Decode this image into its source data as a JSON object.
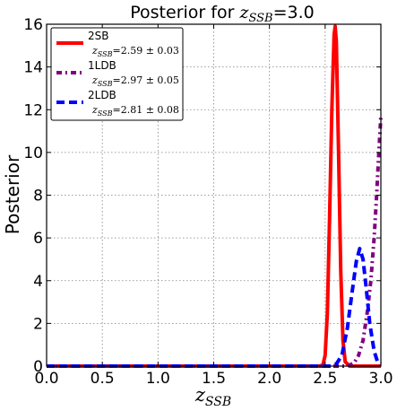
{
  "chart_data": {
    "type": "line",
    "title_prefix": "Posterior for ",
    "title_var": "z",
    "title_sub": "SSB",
    "title_suffix": "=3.0",
    "ylabel": "Posterior",
    "xlabel_var": "z",
    "xlabel_sub": "SSB",
    "xlim": [
      0.0,
      3.0
    ],
    "ylim": [
      0,
      16
    ],
    "xticks": [
      "0.0",
      "0.5",
      "1.0",
      "1.5",
      "2.0",
      "2.5",
      "3.0"
    ],
    "yticks": [
      "0",
      "2",
      "4",
      "6",
      "8",
      "10",
      "12",
      "14",
      "16"
    ],
    "grid": true,
    "legend_position": "top-left",
    "series": [
      {
        "name": "2SB",
        "estimate": "=2.59 ± 0.03",
        "color": "#ff0000",
        "style": "solid",
        "x": [
          0.0,
          2.45,
          2.48,
          2.5,
          2.52,
          2.54,
          2.56,
          2.58,
          2.59,
          2.6,
          2.62,
          2.64,
          2.66,
          2.68,
          2.72,
          3.0
        ],
        "y": [
          0,
          0,
          0.05,
          0.5,
          2.5,
          7.0,
          12.0,
          15.5,
          15.9,
          15.2,
          10.0,
          4.5,
          1.2,
          0.2,
          0,
          0
        ]
      },
      {
        "name": "1LDB",
        "estimate": "=2.97 ± 0.05",
        "color": "#800080",
        "style": "dashdot",
        "x": [
          0.0,
          2.7,
          2.76,
          2.8,
          2.84,
          2.88,
          2.91,
          2.94,
          2.96,
          2.98,
          3.0
        ],
        "y": [
          0,
          0,
          0.15,
          0.5,
          1.2,
          2.6,
          4.0,
          6.0,
          7.8,
          9.8,
          11.7
        ]
      },
      {
        "name": "2LDB",
        "estimate": "=2.81 ± 0.08",
        "color": "#0000ff",
        "style": "dashed",
        "x": [
          0.0,
          2.55,
          2.6,
          2.65,
          2.7,
          2.74,
          2.78,
          2.81,
          2.84,
          2.87,
          2.9,
          2.94,
          2.97,
          3.0
        ],
        "y": [
          0,
          0,
          0.1,
          0.5,
          1.8,
          3.4,
          4.9,
          5.5,
          5.0,
          3.6,
          2.0,
          0.7,
          0.2,
          0.1
        ]
      }
    ]
  }
}
